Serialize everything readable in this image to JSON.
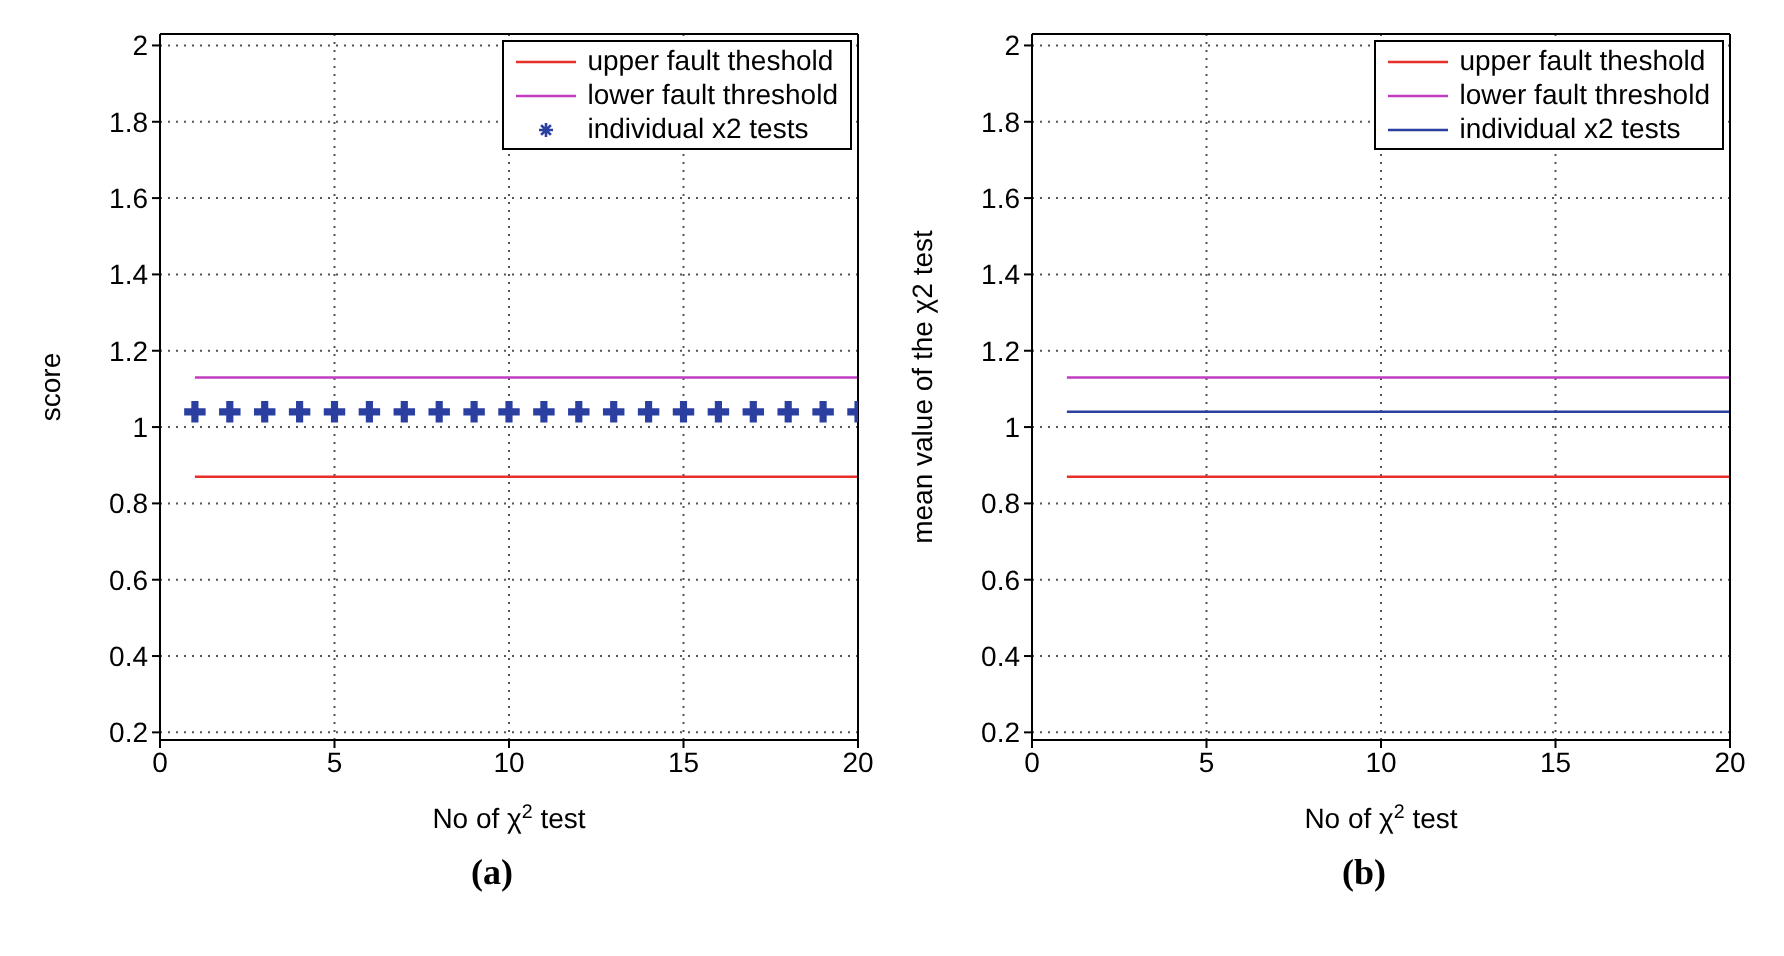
{
  "chart_data": [
    {
      "type": "line",
      "xlabel": "No of χ$^{2}$ test",
      "ylabel": "score",
      "xlim": [
        0,
        20
      ],
      "xticks": [
        0,
        5,
        10,
        15,
        20
      ],
      "ylim": [
        0.18,
        2.03
      ],
      "yticks": [
        0.2,
        0.4,
        0.6,
        0.8,
        1,
        1.2,
        1.4,
        1.6,
        1.8,
        2
      ],
      "grid": true,
      "legend": "top right",
      "annotations": [
        "(a)"
      ],
      "series": [
        {
          "name": "upper fault theshold",
          "color": "#e8302a",
          "x": [
            1,
            20
          ],
          "values": [
            0.87,
            0.87
          ]
        },
        {
          "name": "lower fault threshold",
          "color": "#c03cc0",
          "x": [
            1,
            20
          ],
          "values": [
            1.13,
            1.13
          ]
        },
        {
          "name": "individual x2 tests",
          "type": "scatter",
          "marker": "cross",
          "color": "#2a3fa0",
          "x": [
            1,
            2,
            3,
            4,
            5,
            6,
            7,
            8,
            9,
            10,
            11,
            12,
            13,
            14,
            15,
            16,
            17,
            18,
            19,
            20
          ],
          "values": [
            1.04,
            1.04,
            1.04,
            1.04,
            1.04,
            1.04,
            1.04,
            1.04,
            1.04,
            1.04,
            1.04,
            1.04,
            1.04,
            1.04,
            1.04,
            1.04,
            1.04,
            1.04,
            1.04,
            1.04
          ]
        }
      ]
    },
    {
      "type": "line",
      "xlabel": "No of χ$^{2}$ test",
      "ylabel": "mean value of the χ2 test",
      "xlim": [
        0,
        20
      ],
      "xticks": [
        0,
        5,
        10,
        15,
        20
      ],
      "ylim": [
        0.18,
        2.03
      ],
      "yticks": [
        0.2,
        0.4,
        0.6,
        0.8,
        1,
        1.2,
        1.4,
        1.6,
        1.8,
        2
      ],
      "grid": true,
      "legend": "top right",
      "annotations": [
        "(b)"
      ],
      "series": [
        {
          "name": "upper fault theshold",
          "color": "#e8302a",
          "x": [
            1,
            20
          ],
          "values": [
            0.87,
            0.87
          ]
        },
        {
          "name": "lower fault threshold",
          "color": "#c03cc0",
          "x": [
            1,
            20
          ],
          "values": [
            1.13,
            1.13
          ]
        },
        {
          "name": "individual x2 tests",
          "color": "#2a3fa0",
          "x": [
            1,
            20
          ],
          "values": [
            1.04,
            1.04
          ]
        }
      ]
    }
  ]
}
